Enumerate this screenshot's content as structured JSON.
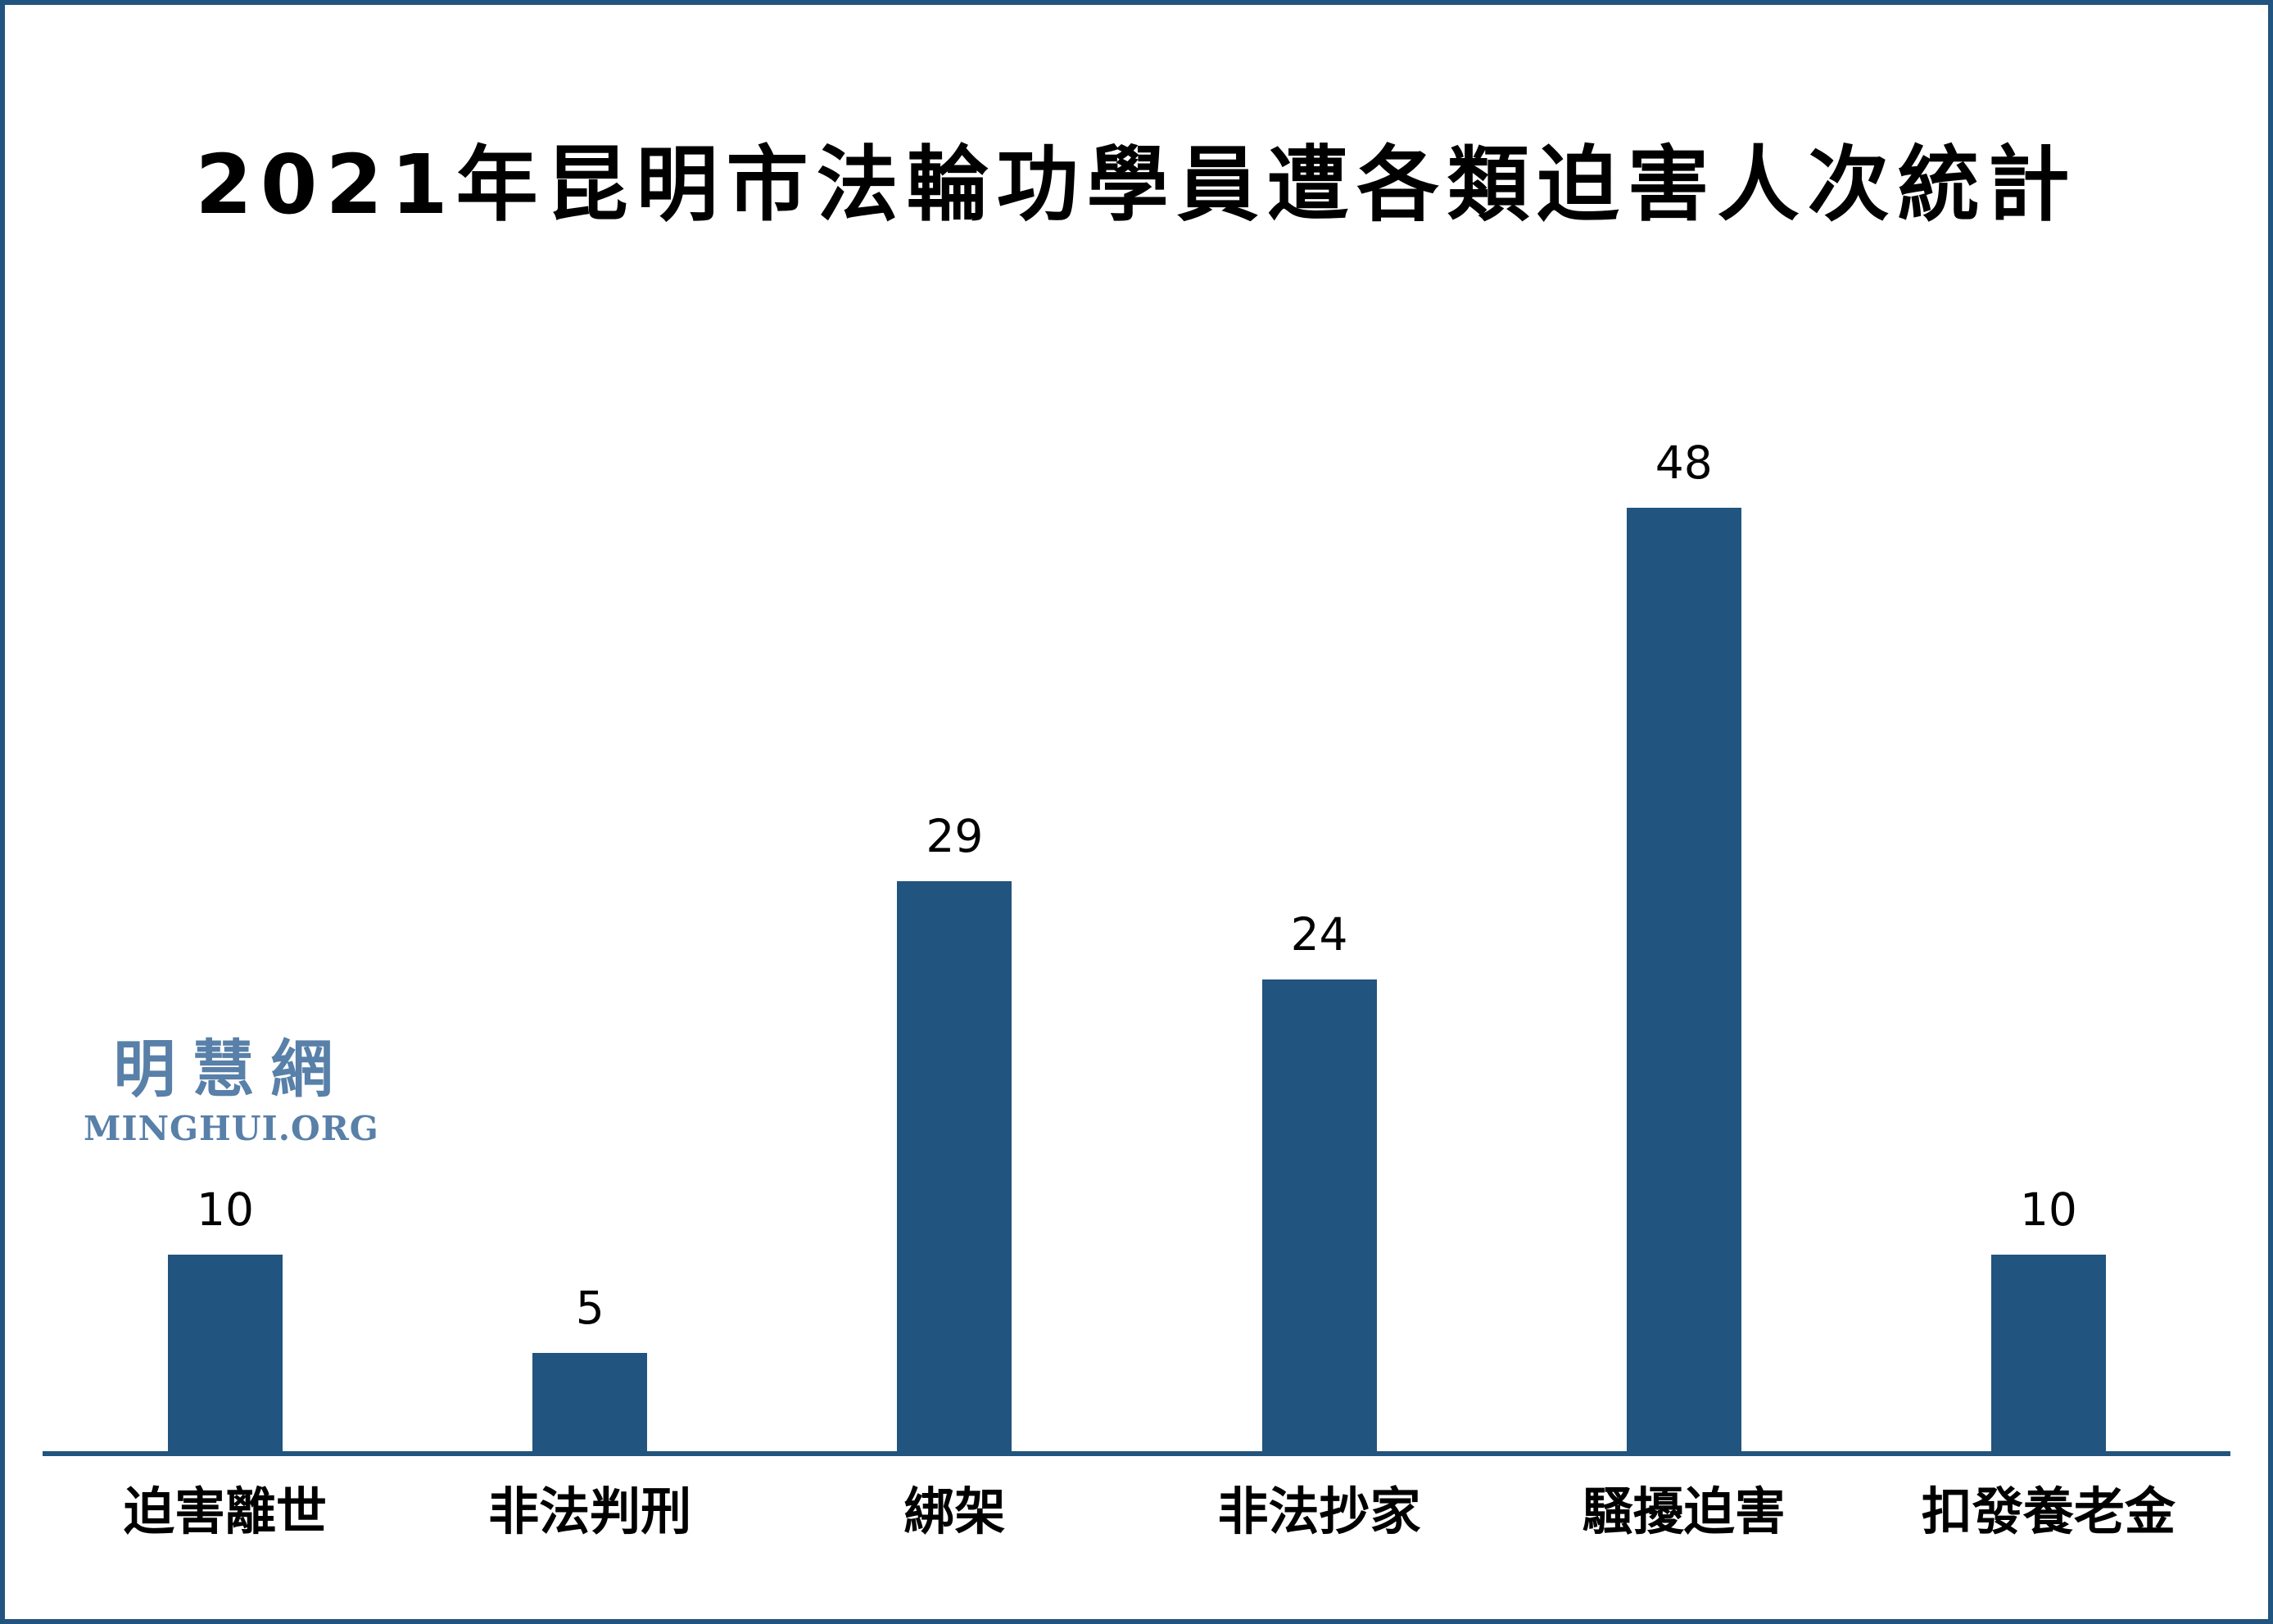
{
  "page": {
    "background": "#ffffff",
    "border_color": "#21547e"
  },
  "title": "2021年昆明市法輪功學員遭各類迫害人次統計",
  "watermark": {
    "cjk": "明慧網",
    "latin": "MINGHUI.ORG",
    "cjk_color": "#5880a8",
    "latin_color": "#5880a8"
  },
  "chart_data": {
    "type": "bar",
    "title": "2021年昆明市法輪功學員遭各類迫害人次統計",
    "categories": [
      "迫害離世",
      "非法判刑",
      "綁架",
      "非法抄家",
      "騷擾迫害",
      "扣發養老金"
    ],
    "values": [
      10,
      5,
      29,
      24,
      48,
      10
    ],
    "bar_color": "#21547e",
    "axis_color": "#21547e",
    "value_label_color": "#000000",
    "xlabel": "",
    "ylabel": "",
    "ylim": [
      0,
      50
    ],
    "grid": false,
    "legend": false,
    "value_labels_shown": true
  }
}
